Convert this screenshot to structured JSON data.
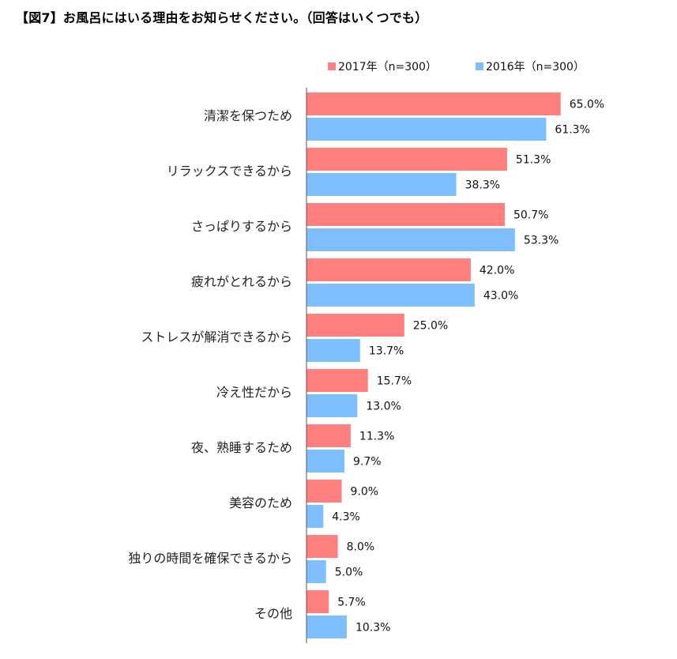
{
  "chart_data": {
    "type": "bar",
    "orientation": "horizontal",
    "title": "【図7】お風呂にはいる理由をお知らせください。（回答はいくつでも）",
    "categories": [
      "清潔を保つため",
      "リラックスできるから",
      "さっぱりするから",
      "疲れがとれるから",
      "ストレスが解消できるから",
      "冷え性だから",
      "夜、熟睡するため",
      "美容のため",
      "独りの時間を確保できるから",
      "その他"
    ],
    "series": [
      {
        "name": "2017年（n=300）",
        "color": "#ff7f7f",
        "values": [
          65.0,
          51.3,
          50.7,
          42.0,
          25.0,
          15.7,
          11.3,
          9.0,
          8.0,
          5.7
        ],
        "labels": [
          "65.0%",
          "51.3%",
          "50.7%",
          "42.0%",
          "25.0%",
          "15.7%",
          "11.3%",
          "9.0%",
          "8.0%",
          "5.7%"
        ]
      },
      {
        "name": "2016年（n=300）",
        "color": "#7fbfff",
        "values": [
          61.3,
          38.3,
          53.3,
          43.0,
          13.7,
          13.0,
          9.7,
          4.3,
          5.0,
          10.3
        ],
        "labels": [
          "61.3%",
          "38.3%",
          "53.3%",
          "43.0%",
          "13.7%",
          "13.0%",
          "9.7%",
          "4.3%",
          "5.0%",
          "10.3%"
        ]
      }
    ],
    "xlim": [
      0,
      100
    ],
    "grid": false,
    "legend_position": "top"
  }
}
